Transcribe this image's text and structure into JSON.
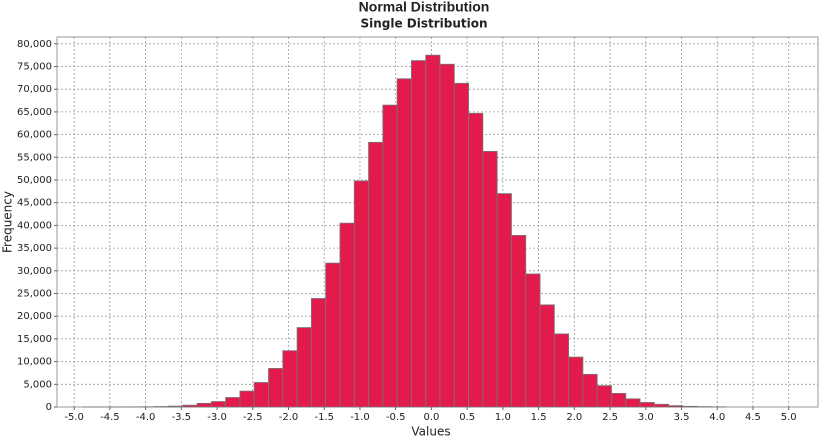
{
  "chart_data": {
    "type": "histogram",
    "title": "Normal Distribution",
    "subtitle": "Single Distribution",
    "x_label": "Values",
    "y_label": "Frequency",
    "color": "#e31a4c",
    "grid": true,
    "bins": [
      -4.88,
      -4.68,
      -4.48,
      -4.28,
      -4.08,
      -3.88,
      -3.68,
      -3.48,
      -3.28,
      -3.08,
      -2.88,
      -2.68,
      -2.48,
      -2.28,
      -2.08,
      -1.88,
      -1.68,
      -1.48,
      -1.28,
      -1.08,
      -0.88,
      -0.68,
      -0.48,
      -0.28,
      -0.08,
      0.12,
      0.32,
      0.52,
      0.72,
      0.92,
      1.12,
      1.32,
      1.52,
      1.72,
      1.92,
      2.12,
      2.32,
      2.52,
      2.72,
      2.92,
      3.12,
      3.32,
      3.52,
      3.72,
      3.92,
      4.12
    ],
    "counts": [
      5,
      10,
      20,
      30,
      50,
      100,
      200,
      400,
      800,
      1200,
      2100,
      3500,
      5400,
      8500,
      12400,
      17500,
      23900,
      31700,
      40500,
      49800,
      58300,
      66500,
      72300,
      76300,
      77500,
      75500,
      71300,
      64700,
      56300,
      47000,
      37800,
      29300,
      22500,
      16100,
      11000,
      7200,
      4700,
      3000,
      1800,
      1000,
      600,
      300,
      150,
      80,
      40
    ],
    "xlim": [
      -5.24,
      5.41
    ],
    "ylim": [
      0,
      81500
    ],
    "xticks": [
      {
        "value": -5,
        "label": "-5.0"
      },
      -4.5,
      {
        "value": -4,
        "label": "-4.0"
      },
      -3.5,
      {
        "value": -3,
        "label": "-3.0"
      },
      -2.5,
      {
        "value": -2,
        "label": "-2.0"
      },
      -1.5,
      {
        "value": -1,
        "label": "-1.0"
      },
      -0.5,
      {
        "value": 0,
        "label": "0.0"
      },
      0.5,
      {
        "value": 1,
        "label": "1.0"
      },
      1.5,
      {
        "value": 2,
        "label": "2.0"
      },
      2.5,
      {
        "value": 3,
        "label": "3.0"
      },
      3.5,
      {
        "value": 4,
        "label": "4.0"
      },
      4.5,
      {
        "value": 5,
        "label": "5.0"
      }
    ],
    "yticks": [
      0,
      {
        "value": 5000,
        "label": "5,000"
      },
      {
        "value": 10000,
        "label": "10,000"
      },
      {
        "value": 15000,
        "label": "15,000"
      },
      {
        "value": 20000,
        "label": "20,000"
      },
      {
        "value": 25000,
        "label": "25,000"
      },
      {
        "value": 30000,
        "label": "30,000"
      },
      {
        "value": 35000,
        "label": "35,000"
      },
      {
        "value": 40000,
        "label": "40,000"
      },
      {
        "value": 45000,
        "label": "45,000"
      },
      {
        "value": 50000,
        "label": "50,000"
      },
      {
        "value": 55000,
        "label": "55,000"
      },
      {
        "value": 60000,
        "label": "60,000"
      },
      {
        "value": 65000,
        "label": "65,000"
      },
      {
        "value": 70000,
        "label": "70,000"
      },
      {
        "value": 75000,
        "label": "75,000"
      },
      {
        "value": 80000,
        "label": "80,000"
      }
    ]
  }
}
